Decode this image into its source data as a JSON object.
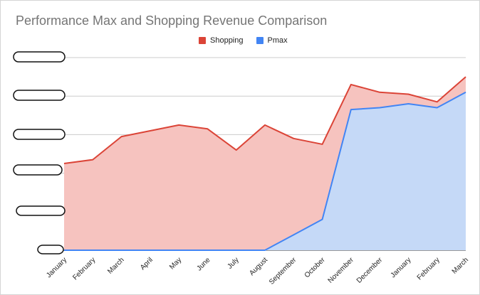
{
  "chart_data": {
    "type": "area",
    "title": "Performance Max and Shopping Revenue Comparison",
    "xlabel": "",
    "ylabel": "",
    "y_tick_labels_redacted": true,
    "legend_position": "top",
    "grid": true,
    "ylim": [
      0,
      100
    ],
    "categories": [
      "January",
      "February",
      "March",
      "April",
      "May",
      "June",
      "July",
      "August",
      "September",
      "October",
      "November",
      "December",
      "January",
      "February",
      "March"
    ],
    "series": [
      {
        "name": "Shopping",
        "color": "#db4437",
        "fill": "#f6c3bf",
        "values": [
          45,
          47,
          59,
          62,
          65,
          63,
          52,
          65,
          58,
          55,
          86,
          82,
          81,
          77,
          90
        ]
      },
      {
        "name": "Pmax",
        "color": "#4285f4",
        "fill": "#c5d9f7",
        "values": [
          0,
          0,
          0,
          0,
          0,
          0,
          0,
          0,
          8,
          16,
          73,
          74,
          76,
          74,
          82
        ]
      }
    ]
  }
}
